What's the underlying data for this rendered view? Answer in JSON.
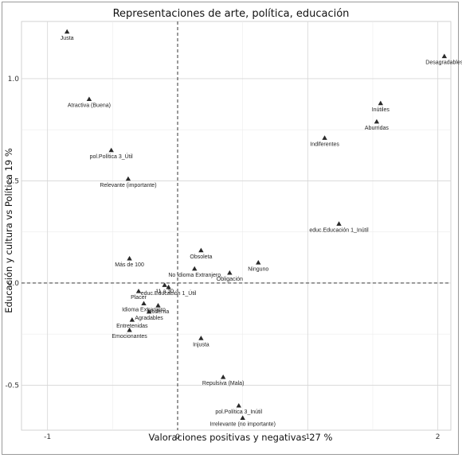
{
  "chart_data": {
    "type": "scatter",
    "title": "Representaciones de arte, política, educación",
    "xlabel": "Valoraciones positivas y negativas 27 %",
    "ylabel": "Educación y cultura vs Política 19 %",
    "xlim": [
      -1.2,
      2.1
    ],
    "ylim": [
      -0.72,
      1.28
    ],
    "x_ticks": [
      -1,
      0,
      1,
      2
    ],
    "x_tick_labels": [
      "-1",
      "0",
      "1",
      "2"
    ],
    "y_ticks": [
      -0.5,
      0,
      0.5,
      1
    ],
    "y_tick_labels": [
      "-0.5",
      "0.0",
      "0.5",
      "1.0"
    ],
    "grid": true,
    "reference_lines": {
      "x": 0,
      "y": 0,
      "style": "dashed"
    },
    "marker": "triangle",
    "points": [
      {
        "label": "Justa",
        "x": -0.85,
        "y": 1.23
      },
      {
        "label": "Desagradables",
        "x": 2.05,
        "y": 1.11
      },
      {
        "label": "Atractiva (Buena)",
        "x": -0.68,
        "y": 0.9
      },
      {
        "label": "Inútiles",
        "x": 1.56,
        "y": 0.88
      },
      {
        "label": "Aburridas",
        "x": 1.53,
        "y": 0.79
      },
      {
        "label": "Indiferentes",
        "x": 1.13,
        "y": 0.71
      },
      {
        "label": "pol.Política 3_Útil",
        "x": -0.51,
        "y": 0.65
      },
      {
        "label": "Relevante (importante)",
        "x": -0.38,
        "y": 0.51
      },
      {
        "label": "educ.Educación 1_Inútil",
        "x": 1.24,
        "y": 0.29
      },
      {
        "label": "Más de 100",
        "x": -0.37,
        "y": 0.12
      },
      {
        "label": "Obsoleta",
        "x": 0.18,
        "y": 0.16
      },
      {
        "label": "No Idioma Extranjero",
        "x": 0.13,
        "y": 0.07
      },
      {
        "label": "Ninguno",
        "x": 0.62,
        "y": 0.1
      },
      {
        "label": "Obligación",
        "x": 0.4,
        "y": 0.05
      },
      {
        "label": "11 a 30",
        "x": -0.1,
        "y": -0.01
      },
      {
        "label": "educ.Educación 1_Útil",
        "x": -0.07,
        "y": -0.02
      },
      {
        "label": "Placer",
        "x": -0.3,
        "y": -0.04
      },
      {
        "label": "Idioma Extranjero",
        "x": -0.26,
        "y": -0.1
      },
      {
        "label": "Moderna",
        "x": -0.15,
        "y": -0.11
      },
      {
        "label": "Agradables",
        "x": -0.22,
        "y": -0.14
      },
      {
        "label": "Entretenidas",
        "x": -0.35,
        "y": -0.18
      },
      {
        "label": "Emocionantes",
        "x": -0.37,
        "y": -0.23
      },
      {
        "label": "Injusta",
        "x": 0.18,
        "y": -0.27
      },
      {
        "label": "Repulsiva (Mala)",
        "x": 0.35,
        "y": -0.46
      },
      {
        "label": "pol.Política 3_Inútil",
        "x": 0.47,
        "y": -0.6
      },
      {
        "label": "Irrelevante (no importante)",
        "x": 0.5,
        "y": -0.66
      }
    ]
  }
}
